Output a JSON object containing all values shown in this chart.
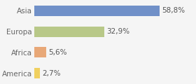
{
  "categories": [
    "America",
    "Africa",
    "Europa",
    "Asia"
  ],
  "values": [
    2.7,
    5.6,
    32.9,
    58.8
  ],
  "labels": [
    "2,7%",
    "5,6%",
    "32,9%",
    "58,8%"
  ],
  "bar_colors": [
    "#f0d060",
    "#e8a878",
    "#b8c888",
    "#7090c8"
  ],
  "background_color": "#f5f5f5",
  "xlim": [
    0,
    75
  ],
  "label_fontsize": 7.5,
  "tick_fontsize": 7.5
}
